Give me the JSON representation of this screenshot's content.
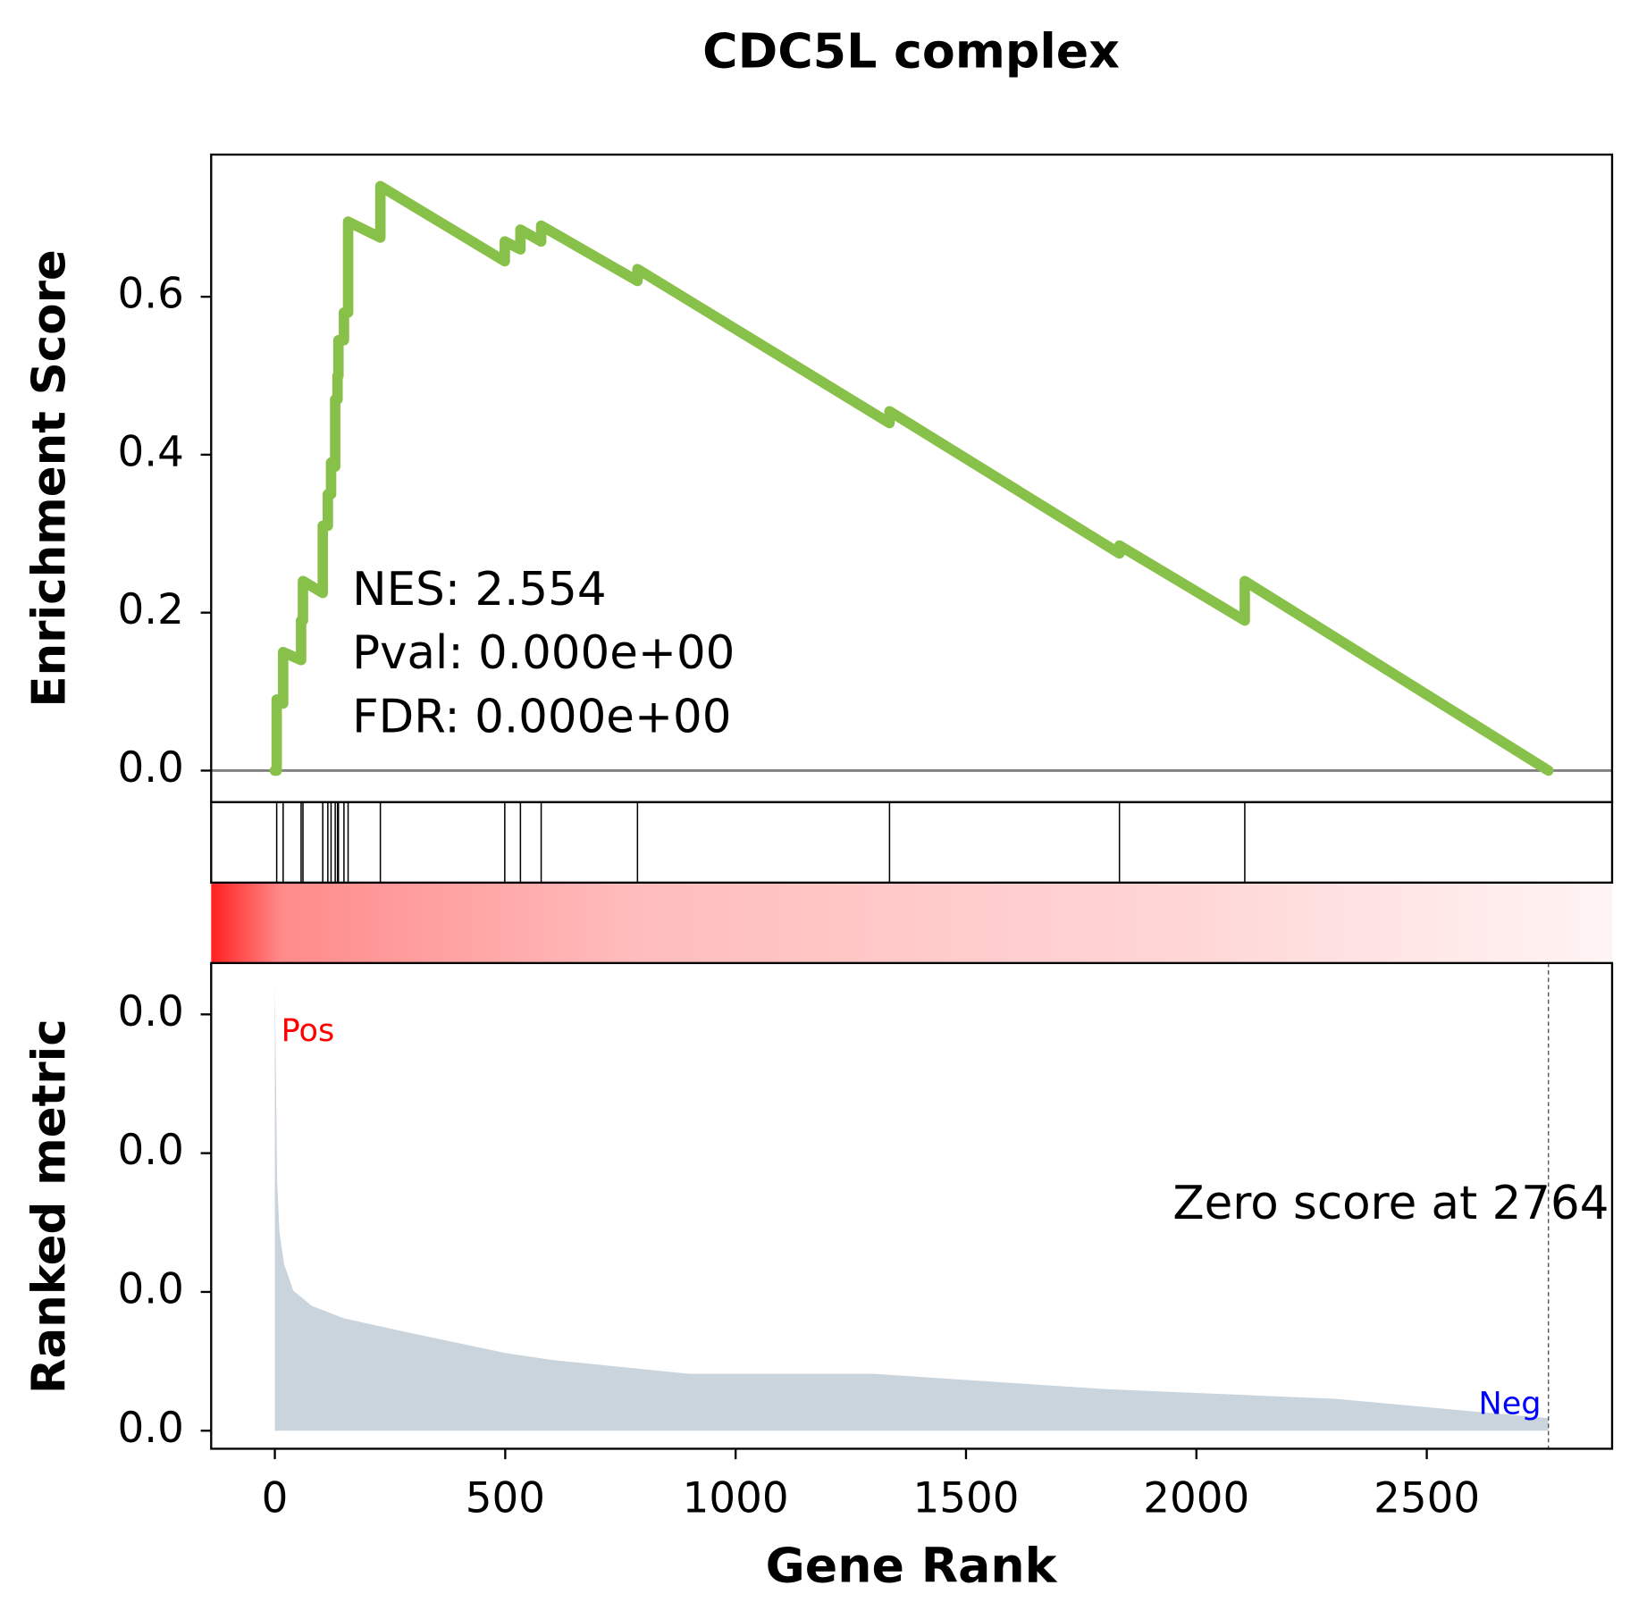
{
  "chart_data": [
    {
      "type": "line",
      "title": "CDC5L complex",
      "ylabel": "Enrichment Score",
      "color": "#88c14a",
      "x": [
        0,
        4,
        4,
        18,
        18,
        57,
        57,
        61,
        61,
        104,
        104,
        115,
        115,
        122,
        122,
        131,
        131,
        136,
        136,
        138,
        138,
        150,
        150,
        159,
        159,
        229,
        229,
        499,
        499,
        533,
        533,
        578,
        578,
        787,
        787,
        1334,
        1334,
        1833,
        1833,
        2105,
        2105,
        2764
      ],
      "values": [
        0,
        0,
        0.09,
        0.085,
        0.15,
        0.14,
        0.19,
        0.19,
        0.24,
        0.225,
        0.31,
        0.31,
        0.35,
        0.35,
        0.39,
        0.385,
        0.47,
        0.47,
        0.5,
        0.5,
        0.545,
        0.545,
        0.58,
        0.58,
        0.695,
        0.675,
        0.74,
        0.645,
        0.67,
        0.66,
        0.685,
        0.67,
        0.69,
        0.62,
        0.635,
        0.44,
        0.455,
        0.275,
        0.285,
        0.19,
        0.24,
        0
      ],
      "hits": [
        4,
        18,
        57,
        61,
        104,
        115,
        122,
        131,
        136,
        138,
        150,
        159,
        229,
        499,
        533,
        578,
        787,
        1334,
        1833,
        2105
      ],
      "xlim": [
        -138.2,
        2902.2
      ],
      "ylim": [
        -0.04,
        0.78
      ],
      "yticks": [
        {
          "value": 0,
          "label": "0.0"
        },
        0.2,
        0.4,
        0.6
      ],
      "annotations": [
        "NES: 2.554",
        "Pval: 0.000e+00",
        "FDR: 0.000e+00"
      ]
    },
    {
      "type": "area",
      "ylabel": "Ranked metric",
      "xlabel": "Gene Rank",
      "color": "#c9d4dd",
      "x": [
        0,
        5,
        10,
        20,
        40,
        80,
        150,
        300,
        500,
        600,
        900,
        1300,
        1800,
        2300,
        2764
      ],
      "values": [
        0.0322,
        0.018,
        0.0143,
        0.012,
        0.0101,
        0.009,
        0.0081,
        0.007,
        0.0056,
        0.0051,
        0.0041,
        0.0041,
        0.003,
        0.0023,
        0.0009
      ],
      "xlim": [
        -138.2,
        2902.2
      ],
      "xticks": [
        0,
        500,
        1000,
        1500,
        2000,
        2500
      ],
      "ylim": [
        -0.0013,
        0.0337
      ],
      "yticks": [
        {
          "value": 0,
          "label": "0.0"
        },
        {
          "value": 0.01,
          "label": "0.0"
        },
        {
          "value": 0.02,
          "label": "0.0"
        },
        {
          "value": 0.03,
          "label": "0.0"
        }
      ],
      "zero_line_x": 2764,
      "annotations": [
        {
          "text": "Pos",
          "color": "#ff0000"
        },
        {
          "text": "Neg",
          "color": "#0000ff"
        },
        {
          "text": "Zero score at 2764",
          "color": "#000000"
        }
      ]
    }
  ]
}
